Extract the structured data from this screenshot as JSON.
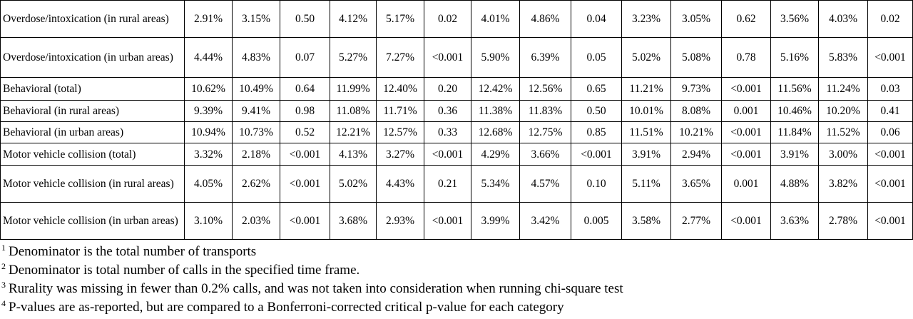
{
  "table": {
    "rows": [
      [
        "Overdose/intoxication (in rural areas)",
        "2.91%",
        "3.15%",
        "0.50",
        "4.12%",
        "5.17%",
        "0.02",
        "4.01%",
        "4.86%",
        "0.04",
        "3.23%",
        "3.05%",
        "0.62",
        "3.56%",
        "4.03%",
        "0.02"
      ],
      [
        "Overdose/intoxication (in urban areas)",
        "4.44%",
        "4.83%",
        "0.07",
        "5.27%",
        "7.27%",
        "<0.001",
        "5.90%",
        "6.39%",
        "0.05",
        "5.02%",
        "5.08%",
        "0.78",
        "5.16%",
        "5.83%",
        "<0.001"
      ],
      [
        "Behavioral (total)",
        "10.62%",
        "10.49%",
        "0.64",
        "11.99%",
        "12.40%",
        "0.20",
        "12.42%",
        "12.56%",
        "0.65",
        "11.21%",
        "9.73%",
        "<0.001",
        "11.56%",
        "11.24%",
        "0.03"
      ],
      [
        "Behavioral (in rural areas)",
        "9.39%",
        "9.41%",
        "0.98",
        "11.08%",
        "11.71%",
        "0.36",
        "11.38%",
        "11.83%",
        "0.50",
        "10.01%",
        "8.08%",
        "0.001",
        "10.46%",
        "10.20%",
        "0.41"
      ],
      [
        "Behavioral (in urban areas)",
        "10.94%",
        "10.73%",
        "0.52",
        "12.21%",
        "12.57%",
        "0.33",
        "12.68%",
        "12.75%",
        "0.85",
        "11.51%",
        "10.21%",
        "<0.001",
        "11.84%",
        "11.52%",
        "0.06"
      ],
      [
        "Motor vehicle collision (total)",
        "3.32%",
        "2.18%",
        "<0.001",
        "4.13%",
        "3.27%",
        "<0.001",
        "4.29%",
        "3.66%",
        "<0.001",
        "3.91%",
        "2.94%",
        "<0.001",
        "3.91%",
        "3.00%",
        "<0.001"
      ],
      [
        "Motor vehicle collision (in rural areas)",
        "4.05%",
        "2.62%",
        "<0.001",
        "5.02%",
        "4.43%",
        "0.21",
        "5.34%",
        "4.57%",
        "0.10",
        "5.11%",
        "3.65%",
        "0.001",
        "4.88%",
        "3.82%",
        "<0.001"
      ],
      [
        "Motor vehicle collision (in urban areas)",
        "3.10%",
        "2.03%",
        "<0.001",
        "3.68%",
        "2.93%",
        "<0.001",
        "3.99%",
        "3.42%",
        "0.005",
        "3.58%",
        "2.77%",
        "<0.001",
        "3.63%",
        "2.78%",
        "<0.001"
      ]
    ]
  },
  "footnotes": [
    {
      "mark": "1",
      "text": "Denominator is the total number of transports"
    },
    {
      "mark": "2",
      "text": "Denominator is total number of calls in the specified time frame."
    },
    {
      "mark": "3",
      "text": "Rurality was missing in fewer than 0.2% calls, and was not taken into consideration when running chi-square test"
    },
    {
      "mark": "4",
      "text": "P-values are as-reported, but are compared to a Bonferroni-corrected critical p-value for each category"
    }
  ]
}
